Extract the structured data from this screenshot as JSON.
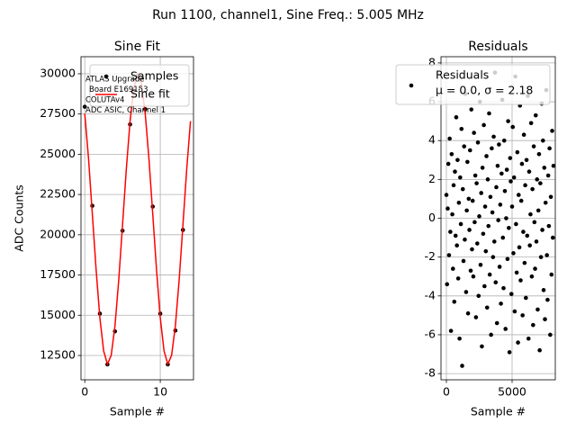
{
  "title": "Run 1100, channel1, Sine Freq.: 5.005 MHz",
  "chart_data": [
    {
      "type": "scatter",
      "title": "Sine Fit",
      "xlabel": "Sample #",
      "ylabel": "ADC Counts",
      "xlim": [
        -0.5,
        14.4
      ],
      "ylim": [
        10990,
        31060
      ],
      "xticks": [
        0,
        10
      ],
      "yticks": [
        12500,
        15000,
        17500,
        20000,
        22500,
        25000,
        27500,
        30000
      ],
      "grid": true,
      "legend": "upper right",
      "annotation": [
        "ATLAS Upgrade",
        "Board E169153",
        "COLUTAv4",
        "ADC ASIC, Channel 1"
      ],
      "series": [
        {
          "name": "Samples",
          "color": "#000000",
          "kind": "points",
          "x": [
            0,
            1,
            2,
            3,
            4,
            5,
            6,
            7,
            8,
            9,
            10,
            11,
            12,
            13
          ],
          "values": [
            27950,
            21800,
            15100,
            11950,
            14000,
            20250,
            26850,
            29900,
            27800,
            21750,
            15100,
            11950,
            14050,
            20300
          ]
        },
        {
          "name": "Sine fit",
          "color": "#ff0000",
          "kind": "line",
          "x": [
            0,
            0.5,
            1,
            1.5,
            2,
            2.5,
            3,
            3.5,
            4,
            4.5,
            5,
            5.5,
            6,
            6.5,
            7,
            7.5,
            8,
            8.5,
            9,
            9.5,
            10,
            10.5,
            11,
            11.5,
            12,
            12.5,
            13,
            13.5,
            14
          ],
          "values": [
            27530,
            24720,
            21300,
            17840,
            14840,
            12780,
            11960,
            12510,
            14340,
            17190,
            20600,
            24060,
            27060,
            29140,
            29940,
            29390,
            27560,
            24710,
            21300,
            17840,
            14840,
            12780,
            11960,
            12510,
            14340,
            17190,
            20600,
            24060,
            27060
          ]
        }
      ]
    },
    {
      "type": "scatter",
      "title": "Residuals",
      "xlabel": "Sample #",
      "xlim": [
        -411,
        8288
      ],
      "ylim": [
        -8.32,
        8.32
      ],
      "xticks": [
        0,
        5000
      ],
      "yticks": [
        -8,
        -6,
        -4,
        -2,
        0,
        2,
        4,
        6,
        8
      ],
      "grid": true,
      "legend": "upper right",
      "legend_note": "μ = 0.0, σ = 2.18",
      "series": [
        {
          "name": "Residuals",
          "color": "#000000",
          "kind": "points",
          "x": [
            0,
            50,
            100,
            150,
            200,
            250,
            300,
            350,
            400,
            450,
            500,
            550,
            600,
            650,
            700,
            750,
            800,
            850,
            900,
            950,
            1000,
            1050,
            1100,
            1150,
            1200,
            1250,
            1300,
            1350,
            1400,
            1450,
            1500,
            1550,
            1600,
            1650,
            1700,
            1750,
            1800,
            1850,
            1900,
            1950,
            2000,
            2050,
            2100,
            2150,
            2200,
            2250,
            2300,
            2350,
            2400,
            2450,
            2500,
            2550,
            2600,
            2650,
            2700,
            2750,
            2800,
            2850,
            2900,
            2950,
            3000,
            3050,
            3100,
            3150,
            3200,
            3250,
            3300,
            3350,
            3400,
            3450,
            3500,
            3550,
            3600,
            3650,
            3700,
            3750,
            3800,
            3850,
            3900,
            3950,
            4000,
            4050,
            4100,
            4150,
            4200,
            4250,
            4300,
            4350,
            4400,
            4450,
            4500,
            4550,
            4600,
            4650,
            4700,
            4750,
            4800,
            4850,
            4900,
            4950,
            5000,
            5050,
            5100,
            5150,
            5200,
            5250,
            5300,
            5350,
            5400,
            5450,
            5500,
            5550,
            5600,
            5650,
            5700,
            5750,
            5800,
            5850,
            5900,
            5950,
            6000,
            6050,
            6100,
            6150,
            6200,
            6250,
            6300,
            6350,
            6400,
            6450,
            6500,
            6550,
            6600,
            6650,
            6700,
            6750,
            6800,
            6850,
            6900,
            6950,
            7000,
            7050,
            7100,
            7150,
            7200,
            7250,
            7300,
            7350,
            7400,
            7450,
            7500,
            7550,
            7600,
            7650,
            7700,
            7750,
            7800,
            7850,
            7900,
            7950,
            8000,
            8050,
            8100,
            8150
          ],
          "values": [
            1.2,
            -3.4,
            0.5,
            2.8,
            -1.9,
            4.1,
            -0.7,
            -5.8,
            3.3,
            0.2,
            -2.6,
            1.7,
            -4.3,
            2.4,
            -0.9,
            5.2,
            -1.4,
            3.0,
            -3.1,
            0.8,
            -6.2,
            2.1,
            -0.3,
            4.6,
            -7.6,
            1.5,
            -2.2,
            3.7,
            -1.1,
            6.4,
            -3.8,
            0.4,
            2.9,
            -4.9,
            1.0,
            -0.6,
            3.5,
            -2.7,
            5.6,
            -1.6,
            0.9,
            -3.0,
            4.4,
            -0.2,
            2.2,
            -5.1,
            1.8,
            -1.3,
            3.9,
            -4.0,
            0.1,
            6.0,
            -2.4,
            1.3,
            -6.6,
            2.6,
            -0.8,
            4.8,
            -3.5,
            0.6,
            -1.7,
            3.2,
            -4.6,
            2.0,
            -0.4,
            5.4,
            -2.9,
            1.1,
            -6.0,
            3.6,
            0.3,
            -2.0,
            4.2,
            -1.2,
            7.5,
            -3.3,
            1.6,
            -5.4,
            2.7,
            -0.1,
            3.8,
            -2.5,
            0.7,
            -4.4,
            2.3,
            6.1,
            -1.0,
            -3.6,
            4.0,
            1.4,
            -5.7,
            0.0,
            2.5,
            -2.1,
            5.0,
            -0.5,
            -6.9,
            3.1,
            1.9,
            -3.9,
            0.6,
            4.7,
            -1.8,
            2.1,
            -4.8,
            7.3,
            -0.3,
            -2.8,
            3.4,
            -6.4,
            1.2,
            -1.5,
            5.8,
            -3.2,
            0.9,
            2.8,
            -5.0,
            -0.7,
            4.3,
            -2.3,
            1.7,
            -4.1,
            3.0,
            -0.9,
            6.3,
            -6.2,
            2.4,
            -1.4,
            0.2,
            4.9,
            -3.0,
            1.5,
            -5.5,
            3.7,
            -0.2,
            -2.6,
            5.3,
            -1.2,
            2.0,
            -4.7,
            0.4,
            3.3,
            -6.8,
            1.8,
            -2.0,
            5.9,
            -0.6,
            4.0,
            -3.7,
            2.6,
            -5.2,
            0.8,
            6.6,
            -1.9,
            -4.2,
            2.2,
            -0.4,
            3.6,
            -6.0,
            1.1,
            -2.9,
            4.5,
            -1.0,
            2.7
          ]
        }
      ]
    }
  ]
}
